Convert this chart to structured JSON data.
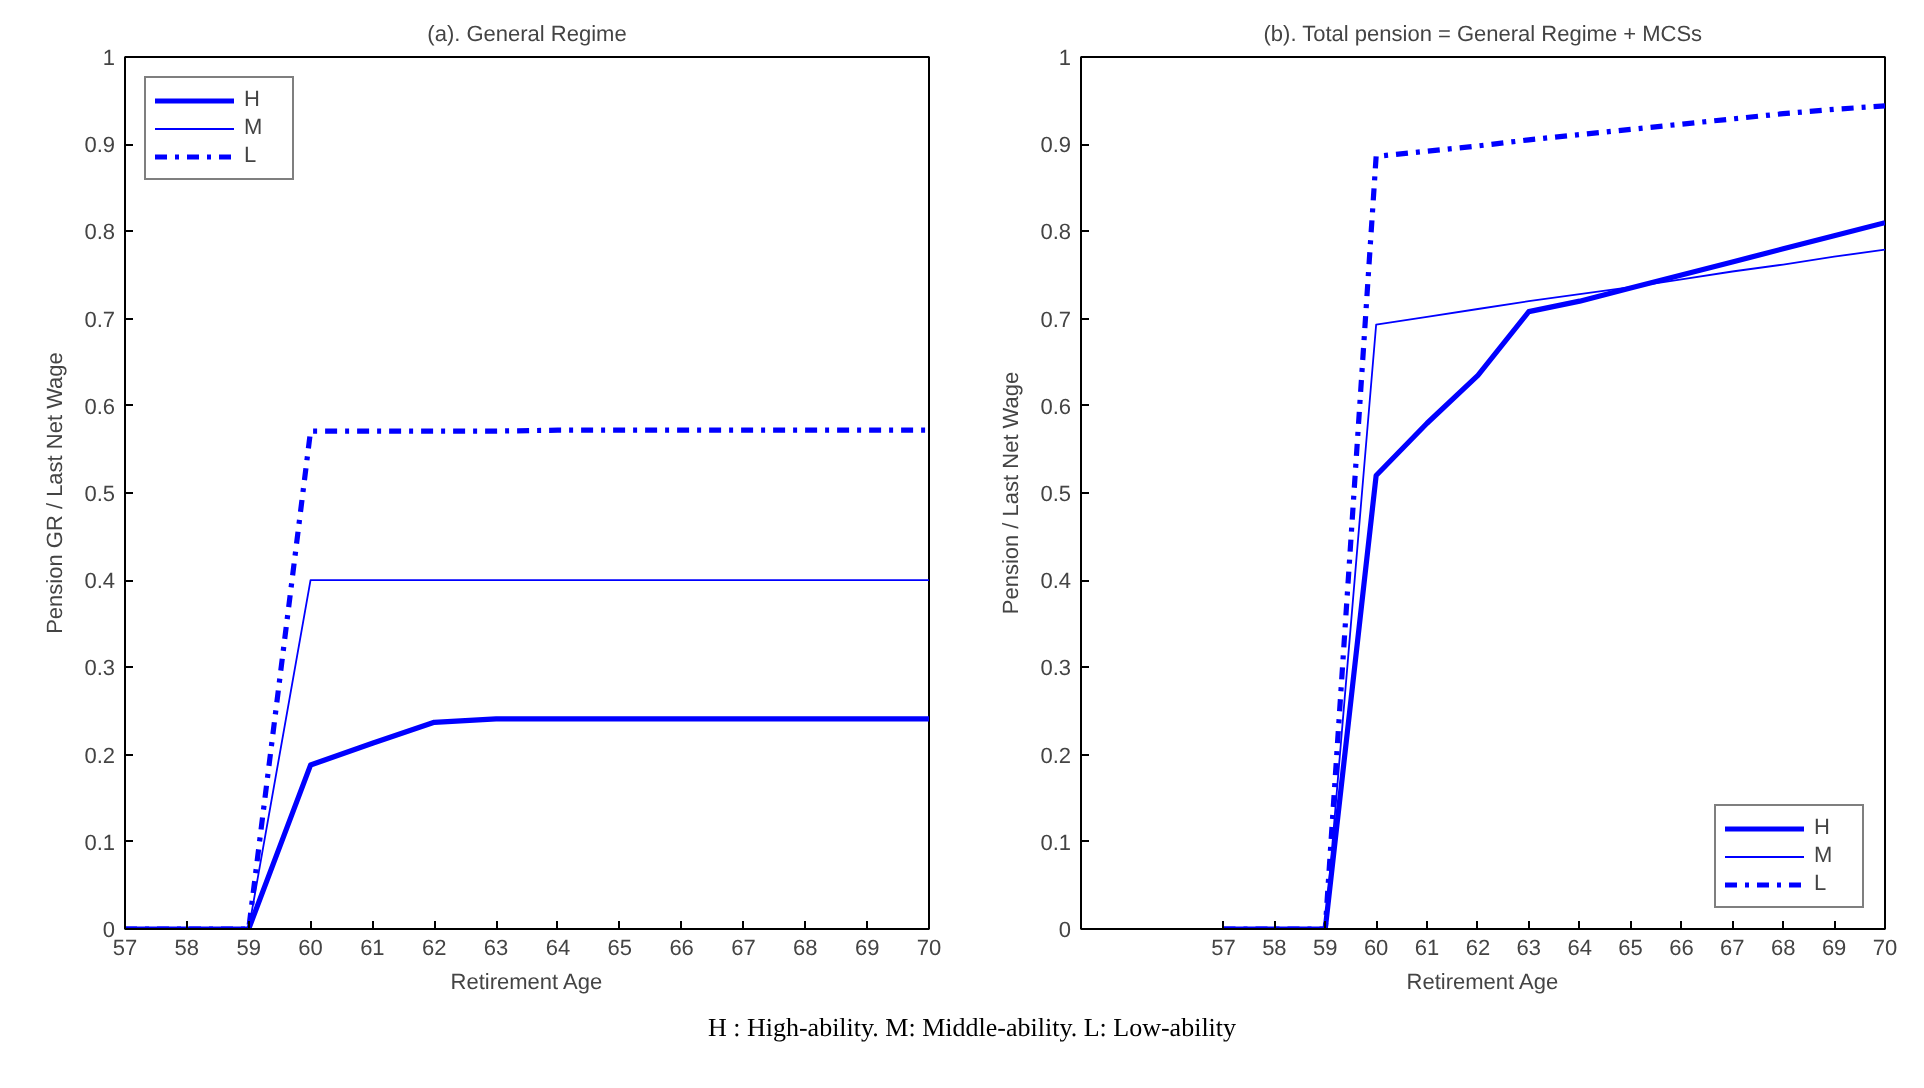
{
  "chart_data": [
    {
      "type": "line",
      "title": "(a). General Regime",
      "xlabel": "Retirement Age",
      "ylabel": "Pension GR / Last Net Wage",
      "x": [
        57,
        58,
        59,
        60,
        61,
        62,
        63,
        64,
        65,
        66,
        67,
        68,
        69,
        70
      ],
      "xlim": [
        57,
        70
      ],
      "xticks": [
        57,
        58,
        59,
        60,
        61,
        62,
        63,
        64,
        65,
        66,
        67,
        68,
        69,
        70
      ],
      "ylim": [
        0,
        1
      ],
      "yticks": [
        0,
        0.1,
        0.2,
        0.3,
        0.4,
        0.5,
        0.6,
        0.7,
        0.8,
        0.9,
        1
      ],
      "legend": "top left",
      "grid": false,
      "series": [
        {
          "name": "H",
          "color": "#0000ff",
          "line_style": "solid",
          "values": [
            0,
            0,
            0,
            0.188,
            0.213,
            0.237,
            0.241,
            0.241,
            0.241,
            0.241,
            0.241,
            0.241,
            0.241,
            0.241
          ]
        },
        {
          "name": "M",
          "color": "#0000ff",
          "line_style": "solid",
          "values": [
            0,
            0,
            0,
            0.4,
            0.4,
            0.4,
            0.4,
            0.4,
            0.4,
            0.4,
            0.4,
            0.4,
            0.4,
            0.4
          ]
        },
        {
          "name": "L",
          "color": "#0000ff",
          "line_style": "dashdot",
          "values": [
            0,
            0,
            0,
            0.571,
            0.571,
            0.571,
            0.571,
            0.572,
            0.572,
            0.572,
            0.572,
            0.572,
            0.572,
            0.572
          ]
        }
      ]
    },
    {
      "type": "line",
      "title": "(b). Total pension = General Regime + MCSs",
      "xlabel": "Retirement Age",
      "ylabel": "Pension / Last Net Wage",
      "x": [
        57,
        58,
        59,
        60,
        61,
        62,
        63,
        64,
        65,
        66,
        67,
        68,
        69,
        70
      ],
      "xlim": [
        54.2,
        70
      ],
      "xticks": [
        57,
        58,
        59,
        60,
        61,
        62,
        63,
        64,
        65,
        66,
        67,
        68,
        69,
        70
      ],
      "ylim": [
        0,
        1
      ],
      "yticks": [
        0,
        0.1,
        0.2,
        0.3,
        0.4,
        0.5,
        0.6,
        0.7,
        0.8,
        0.9,
        1
      ],
      "legend": "bottom right",
      "grid": false,
      "annotations": [
        "H : High-ability. M: Middle-ability. L: Low-ability"
      ],
      "series": [
        {
          "name": "H",
          "color": "#0000ff",
          "line_style": "solid",
          "values": [
            0,
            0,
            0,
            0.52,
            0.58,
            0.635,
            0.708,
            0.72,
            0.735,
            0.75,
            0.765,
            0.78,
            0.795,
            0.81
          ]
        },
        {
          "name": "M",
          "color": "#0000ff",
          "line_style": "solid",
          "values": [
            0,
            0,
            0,
            0.693,
            0.702,
            0.711,
            0.72,
            0.728,
            0.736,
            0.745,
            0.754,
            0.762,
            0.771,
            0.779
          ]
        },
        {
          "name": "L",
          "color": "#0000ff",
          "line_style": "dashdot",
          "values": [
            0,
            0,
            0,
            0.886,
            0.892,
            0.898,
            0.905,
            0.911,
            0.917,
            0.923,
            0.929,
            0.935,
            0.94,
            0.944
          ]
        }
      ]
    }
  ]
}
